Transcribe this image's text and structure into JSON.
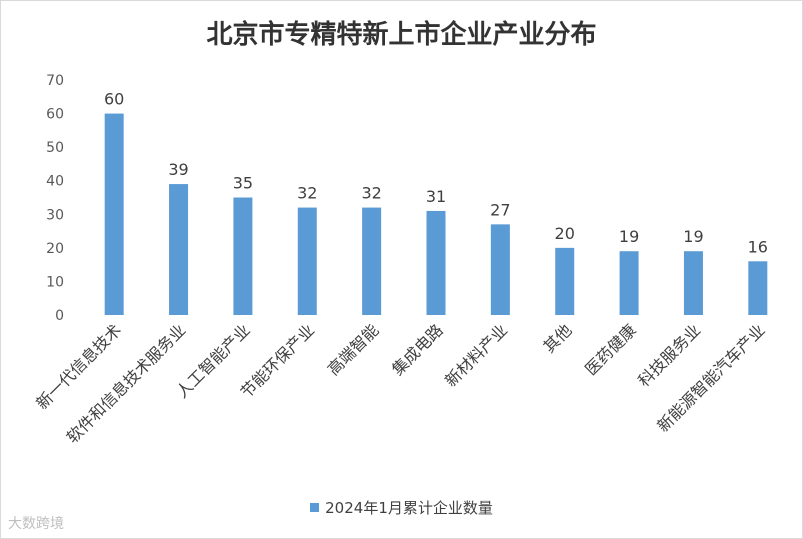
{
  "watermark": "大数跨境",
  "colors": {
    "bar": "#5b9bd5"
  },
  "chart_data": {
    "type": "bar",
    "title": "北京市专精特新上市企业产业分布",
    "categories": [
      "新一代信息技术",
      "软件和信息技术服务业",
      "人工智能产业",
      "节能环保产业",
      "高端智能",
      "集成电路",
      "新材料产业",
      "其他",
      "医药健康",
      "科技服务业",
      "新能源智能汽车产业"
    ],
    "series": [
      {
        "name": "2024年1月累计企业数量",
        "values": [
          60,
          39,
          35,
          32,
          32,
          31,
          27,
          20,
          19,
          19,
          16
        ]
      }
    ],
    "ylim": [
      0,
      70
    ],
    "yticks": [
      0,
      10,
      20,
      30,
      40,
      50,
      60,
      70
    ],
    "legend_position": "bottom",
    "grid": false
  }
}
